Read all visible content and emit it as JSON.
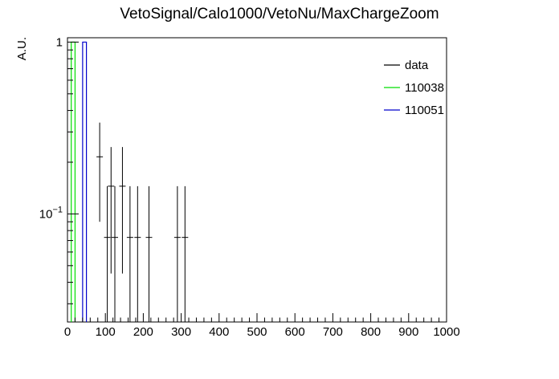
{
  "chart_data": {
    "type": "histogram",
    "title": "VetoSignal/Calo1000/VetoNu/MaxChargeZoom",
    "xlabel": "",
    "ylabel": "A.U.",
    "xlim": [
      0,
      1000
    ],
    "ylim": [
      0.0235,
      1.06
    ],
    "yscale": "log",
    "x_ticks": [
      "0",
      "100",
      "200",
      "300",
      "400",
      "500",
      "600",
      "700",
      "800",
      "900",
      "1000"
    ],
    "y_ticks": [
      {
        "value": 1,
        "label": "1",
        "exp": ""
      },
      {
        "value": 0.1,
        "label": "10",
        "exp": "−1"
      }
    ],
    "legend": {
      "position": "top-right"
    },
    "series": [
      {
        "name": "data",
        "color": "#000000",
        "style": "points-errorbars",
        "points": [
          {
            "x": 85,
            "y": 0.215,
            "ylo": 0.09,
            "yhi": 0.34
          },
          {
            "x": 105,
            "y": 0.073,
            "ylo": 0.0235,
            "yhi": 0.145
          },
          {
            "x": 115,
            "y": 0.145,
            "ylo": 0.045,
            "yhi": 0.245
          },
          {
            "x": 125,
            "y": 0.073,
            "ylo": 0.0235,
            "yhi": 0.145
          },
          {
            "x": 145,
            "y": 0.145,
            "ylo": 0.045,
            "yhi": 0.245
          },
          {
            "x": 165,
            "y": 0.073,
            "ylo": 0.0235,
            "yhi": 0.145
          },
          {
            "x": 185,
            "y": 0.073,
            "ylo": 0.0235,
            "yhi": 0.145
          },
          {
            "x": 215,
            "y": 0.073,
            "ylo": 0.0235,
            "yhi": 0.145
          },
          {
            "x": 290,
            "y": 0.073,
            "ylo": 0.0235,
            "yhi": 0.145
          },
          {
            "x": 310,
            "y": 0.073,
            "ylo": 0.0235,
            "yhi": 0.145
          }
        ]
      },
      {
        "name": "110038",
        "color": "#00dd00",
        "style": "hist",
        "bins": [
          {
            "x0": 10,
            "x1": 20,
            "y": 1.0
          }
        ]
      },
      {
        "name": "110051",
        "color": "#0000cc",
        "style": "hist",
        "bins": [
          {
            "x0": 40,
            "x1": 50,
            "y": 1.0
          }
        ]
      }
    ]
  }
}
